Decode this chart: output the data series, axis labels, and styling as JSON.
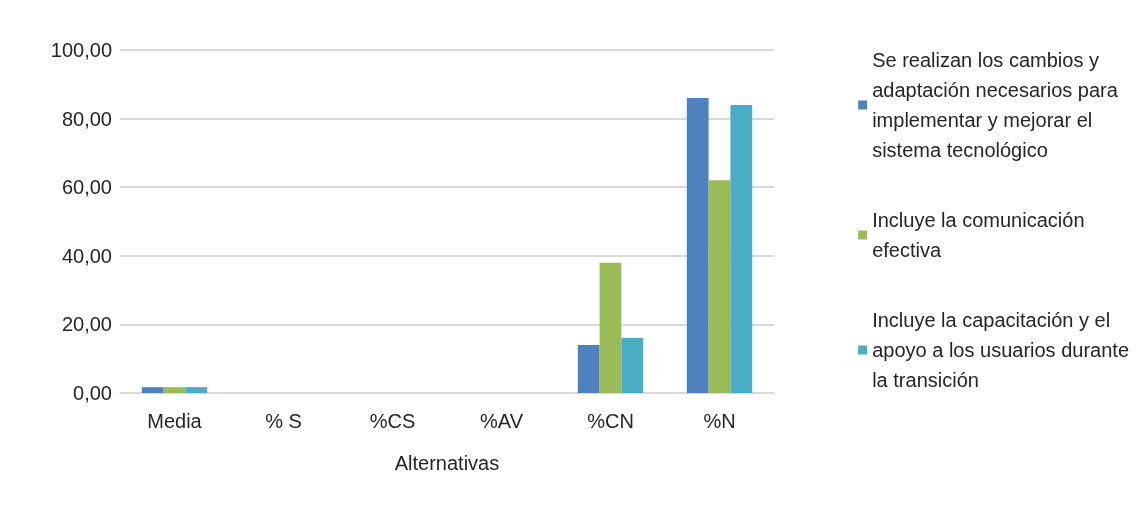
{
  "chart_data": {
    "type": "bar",
    "xlabel": "Alternativas",
    "categories": [
      "Media",
      "% S",
      "%CS",
      "%AV",
      "%CN",
      "%N"
    ],
    "series": [
      {
        "name": "Se realizan los cambios y adaptación necesarios para implementar y mejorar el sistema tecnológico",
        "color": "#4f81bd",
        "values": [
          1.7,
          0,
          0,
          0,
          14,
          86
        ]
      },
      {
        "name": "Incluye la comunicación efectiva",
        "color": "#9bbb59",
        "values": [
          1.7,
          0,
          0,
          0,
          38,
          62
        ]
      },
      {
        "name": "Incluye la capacitación y el apoyo a los usuarios durante la transición",
        "color": "#4bacc6",
        "values": [
          1.7,
          0,
          0,
          0,
          16,
          84
        ]
      }
    ],
    "ylim": [
      0,
      100
    ],
    "yticks": [
      {
        "value": 0,
        "label": "0,00"
      },
      {
        "value": 20,
        "label": "20,00"
      },
      {
        "value": 40,
        "label": "40,00"
      },
      {
        "value": 60,
        "label": "60,00"
      },
      {
        "value": 80,
        "label": "80,00"
      },
      {
        "value": 100,
        "label": "100,00"
      }
    ],
    "grid": "y",
    "legend": "right"
  }
}
